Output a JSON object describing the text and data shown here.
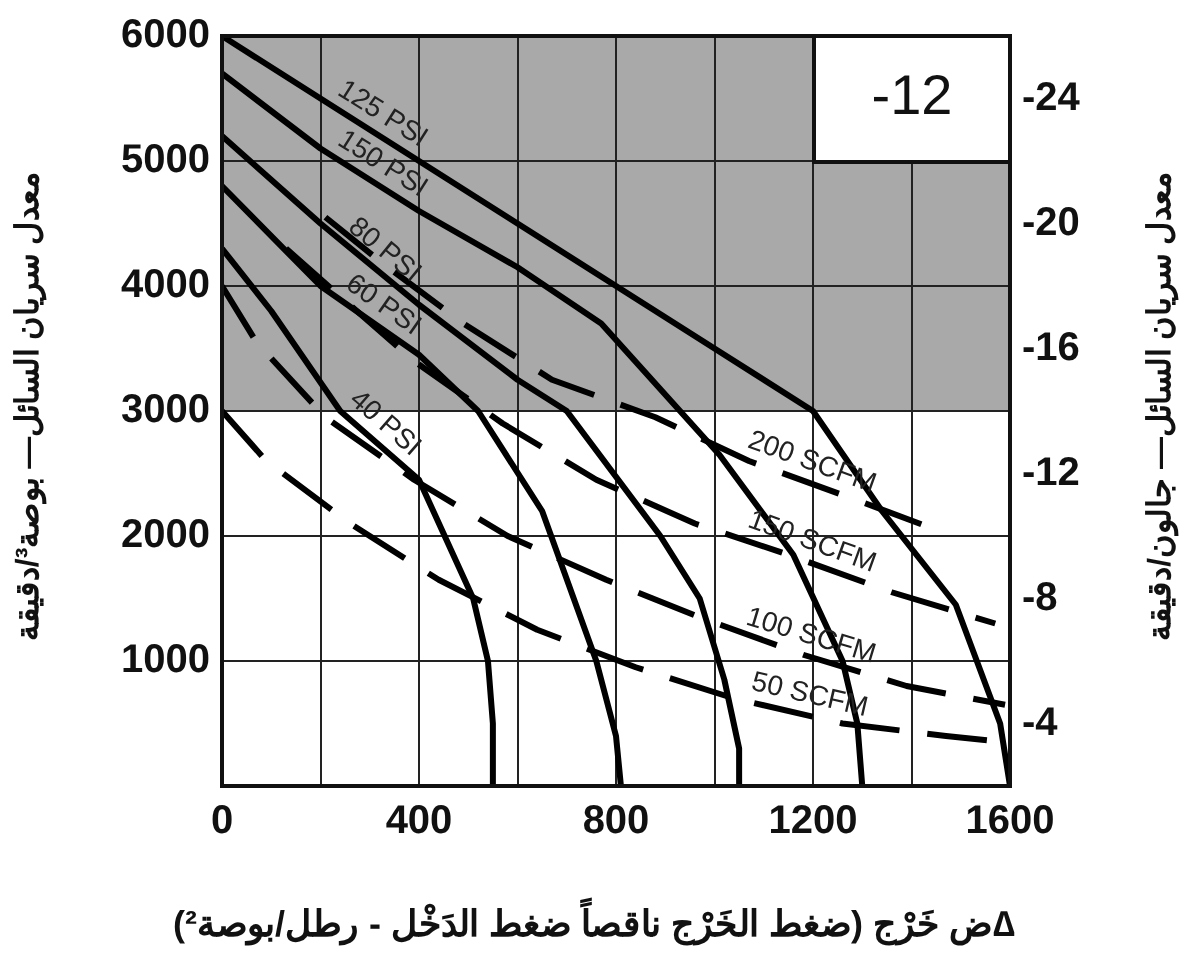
{
  "chart_data": {
    "type": "line",
    "xlabel": "∆ض خَرْج (ضغط الخَرْج ناقصاً ضغط الدَخْل -  رطل/بوصة²)",
    "ylabel": "معدل سريان السائل— بوصة³/دقيقة",
    "y2label": "معدل سريان السائل— جالون/دقيقة",
    "annotations": [
      "-12"
    ],
    "xlim": [
      0,
      1600
    ],
    "xticks": [
      0,
      {
        "value": 200,
        "label": null
      },
      400,
      {
        "value": 600,
        "label": null
      },
      800,
      {
        "value": 1000,
        "label": null
      },
      1200,
      {
        "value": 1400,
        "label": null
      },
      1600
    ],
    "ylim": [
      0,
      6000
    ],
    "yticks": [
      1000,
      2000,
      3000,
      4000,
      5000,
      6000
    ],
    "y2lim": [
      -2,
      -26
    ],
    "y2ticks": [
      -4,
      -8,
      -12,
      -16,
      -20,
      -24
    ],
    "grid": true,
    "marker": "none",
    "bands": [
      {
        "axis": "y",
        "from": 3000,
        "to": 6000,
        "color": "#a9a9a9"
      }
    ],
    "series": [
      {
        "name": "125 PSI",
        "color": "#000000",
        "line_style": "solid",
        "x": [
          0,
          200,
          400,
          600,
          800,
          1000,
          1200,
          1340,
          1490,
          1580,
          1600
        ],
        "values": [
          6000,
          5500,
          5000,
          4500,
          4000,
          3500,
          3000,
          2200,
          1450,
          500,
          0
        ]
      },
      {
        "name": "150 PSI",
        "color": "#000000",
        "line_style": "solid",
        "x": [
          0,
          200,
          400,
          600,
          770,
          930,
          1010,
          1160,
          1260,
          1290,
          1300
        ],
        "values": [
          5700,
          5100,
          4600,
          4150,
          3700,
          3000,
          2650,
          1850,
          1000,
          500,
          0
        ]
      },
      {
        "name": "80 PSI",
        "color": "#000000",
        "line_style": "solid",
        "x": [
          0,
          200,
          400,
          600,
          700,
          890,
          970,
          1020,
          1050,
          1050
        ],
        "values": [
          5200,
          4500,
          3850,
          3250,
          3000,
          2000,
          1500,
          850,
          300,
          0
        ]
      },
      {
        "name": "60 PSI",
        "color": "#000000",
        "line_style": "solid",
        "x": [
          0,
          200,
          400,
          520,
          650,
          760,
          800,
          810
        ],
        "values": [
          4800,
          4000,
          3450,
          3000,
          2200,
          1000,
          400,
          0
        ]
      },
      {
        "name": "40 PSI",
        "color": "#000000",
        "line_style": "solid",
        "x": [
          0,
          100,
          240,
          400,
          510,
          540,
          550,
          550
        ],
        "values": [
          4300,
          3800,
          3000,
          2450,
          1500,
          1000,
          500,
          0
        ]
      },
      {
        "name": "200 SCFM",
        "color": "#000000",
        "line_style": "dashed",
        "x": [
          210,
          320,
          490,
          670,
          880,
          1070,
          1280,
          1450
        ],
        "values": [
          4550,
          4200,
          3700,
          3250,
          2950,
          2600,
          2300,
          2050
        ]
      },
      {
        "name": "150 SCFM",
        "color": "#000000",
        "line_style": "dashed",
        "x": [
          130,
          230,
          390,
          570,
          760,
          960,
          1150,
          1360,
          1570
        ],
        "values": [
          4300,
          3950,
          3400,
          2900,
          2450,
          2100,
          1850,
          1550,
          1300
        ]
      },
      {
        "name": "100 SCFM",
        "color": "#000000",
        "line_style": "dashed",
        "x": [
          0,
          70,
          210,
          390,
          580,
          780,
          970,
          1180,
          1390,
          1590
        ],
        "values": [
          4000,
          3550,
          2950,
          2450,
          2000,
          1650,
          1350,
          1050,
          800,
          650
        ]
      },
      {
        "name": "50 SCFM",
        "color": "#000000",
        "line_style": "dashed",
        "x": [
          0,
          90,
          260,
          440,
          640,
          840,
          1040,
          1260,
          1470,
          1590
        ],
        "values": [
          3000,
          2600,
          2100,
          1650,
          1250,
          950,
          700,
          500,
          400,
          350
        ]
      }
    ]
  }
}
